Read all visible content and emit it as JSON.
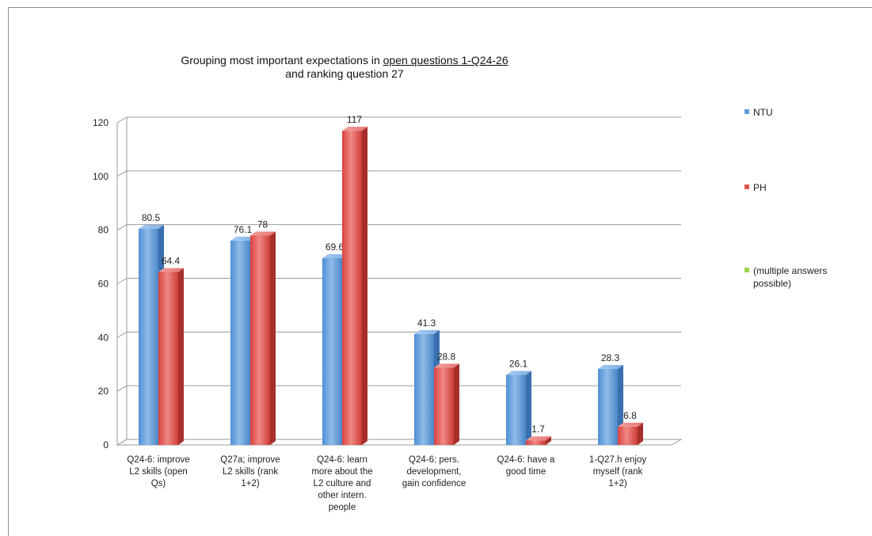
{
  "title_line1_prefix": "Grouping most important expectations in ",
  "title_line1_underlined": "open questions 1-Q24-26",
  "title_line2": "and ranking question 27",
  "legend": [
    {
      "label": "NTU",
      "color": "#5b9bd5"
    },
    {
      "label": "PH",
      "color": "#e2524c"
    },
    {
      "label": "(multiple answers possible)",
      "color": "#9bd54a"
    }
  ],
  "chart_data": {
    "type": "bar",
    "title": "Grouping most important expectations in open questions 1-Q24-26 and ranking question 27",
    "categories": [
      [
        "Q24-6: improve",
        "L2 skills (open",
        "Qs)"
      ],
      [
        "Q27a; improve",
        "L2 skills (rank",
        "1+2)"
      ],
      [
        "Q24-6: learn",
        "more about the",
        "L2 culture and",
        "other intern.",
        "people"
      ],
      [
        "Q24-6: pers.",
        "development,",
        "gain confidence"
      ],
      [
        "Q24-6: have a",
        "good time"
      ],
      [
        "1-Q27.h enjoy",
        "myself (rank",
        "1+2)"
      ]
    ],
    "series": [
      {
        "name": "NTU",
        "values": [
          80.5,
          76.1,
          69.6,
          41.3,
          26.1,
          28.3
        ],
        "labels": [
          "80.5",
          "76.1",
          "69.6",
          "41.3",
          "26.1",
          "28.3"
        ],
        "color": "#5b9bd5"
      },
      {
        "name": "PH",
        "values": [
          64.4,
          78,
          117,
          28.8,
          1.7,
          6.8
        ],
        "labels": [
          "64.4",
          "78",
          "117",
          "28.8",
          "1.7",
          "6.8"
        ],
        "color": "#e2524c"
      }
    ],
    "ylim": [
      0,
      120
    ],
    "yticks": [
      0,
      20,
      40,
      60,
      80,
      100,
      120
    ],
    "grid": true,
    "legend_position": "right",
    "style": "3d-column"
  }
}
